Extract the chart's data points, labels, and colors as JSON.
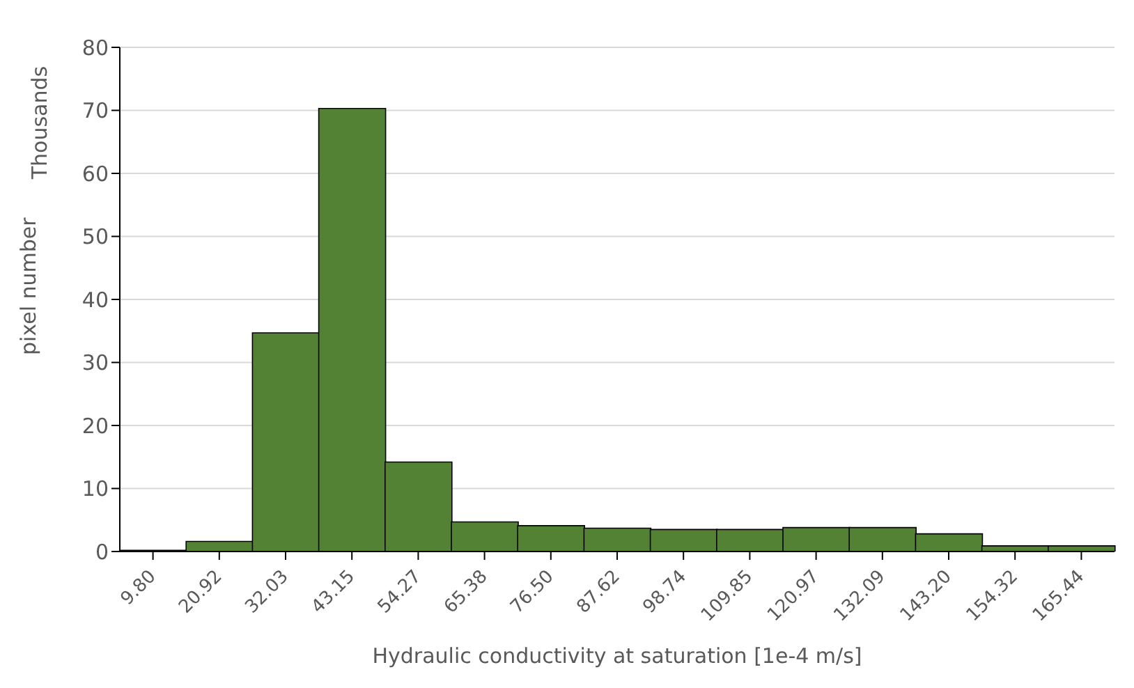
{
  "chart_data": {
    "type": "bar",
    "xlabel": "Hydraulic conductivity at saturation [1e-4 m/s]",
    "ylabel": "pixel number",
    "annotations": [
      "Thousands"
    ],
    "categories": [
      "9.80",
      "20.92",
      "32.03",
      "43.15",
      "54.27",
      "65.38",
      "76.50",
      "87.62",
      "98.74",
      "109.85",
      "120.97",
      "132.09",
      "143.20",
      "154.32",
      "165.44"
    ],
    "values": [
      0.2,
      1.6,
      34.7,
      70.3,
      14.2,
      4.7,
      4.1,
      3.7,
      3.5,
      3.5,
      3.8,
      3.8,
      2.8,
      0.9,
      0.9
    ],
    "color": "#548235",
    "ylim": [
      0,
      80
    ],
    "yticks": [
      0,
      10,
      20,
      30,
      40,
      50,
      60,
      70,
      80
    ],
    "grid": "y"
  }
}
